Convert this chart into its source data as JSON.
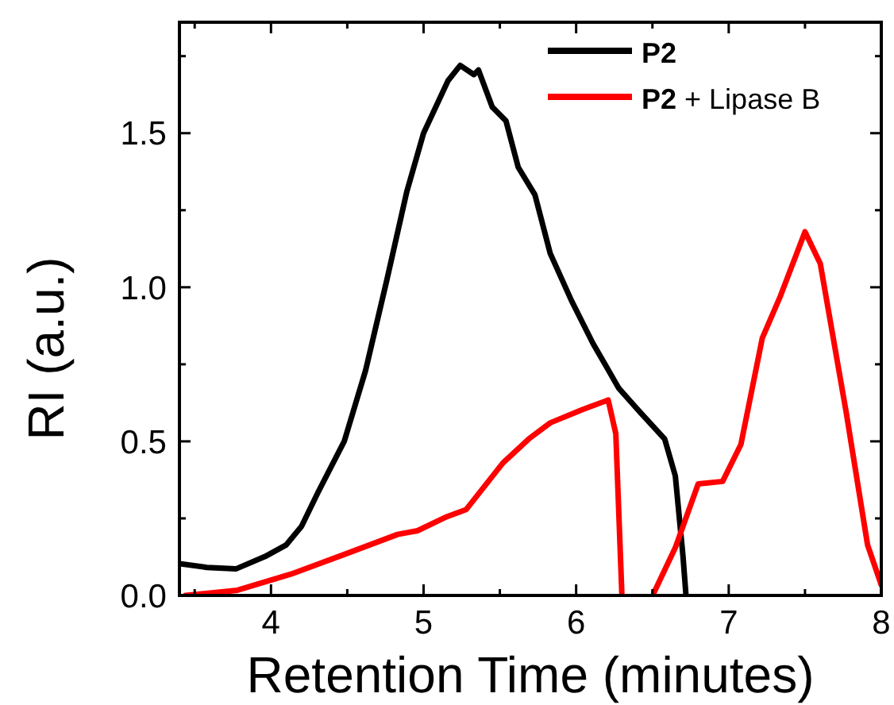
{
  "chart_data": {
    "type": "line",
    "xlabel": "Retention Time (minutes)",
    "ylabel": "RI (a.u.)",
    "xlim": [
      3.4,
      8
    ],
    "ylim": [
      0,
      1.86
    ],
    "xticks": [
      {
        "value": 3.5,
        "label": null
      },
      4,
      {
        "value": 4.5,
        "label": null
      },
      5,
      {
        "value": 5.5,
        "label": null
      },
      6,
      {
        "value": 6.5,
        "label": null
      },
      7,
      {
        "value": 7.5,
        "label": null
      },
      8
    ],
    "yticks": [
      {
        "value": 0,
        "label": "0.0"
      },
      {
        "value": 0.25,
        "label": null
      },
      0.5,
      {
        "value": 0.75,
        "label": null
      },
      {
        "value": 1,
        "label": "1.0"
      },
      {
        "value": 1.25,
        "label": null
      },
      1.5,
      {
        "value": 1.75,
        "label": null
      }
    ],
    "legend": "top right",
    "line_style": "solid",
    "marker": "none",
    "series": [
      {
        "name": "P2",
        "color": "#000000",
        "x": [
          3.4,
          3.58,
          3.77,
          3.96,
          4.1,
          4.2,
          4.31,
          4.48,
          4.62,
          4.76,
          4.89,
          5.0,
          5.16,
          5.24,
          5.33,
          5.36,
          5.45,
          5.54,
          5.62,
          5.73,
          5.83,
          5.97,
          6.11,
          6.28,
          6.42,
          6.58,
          6.65,
          6.7,
          6.72
        ],
        "values": [
          0.103,
          0.091,
          0.086,
          0.126,
          0.164,
          0.224,
          0.336,
          0.5,
          0.73,
          1.025,
          1.31,
          1.5,
          1.67,
          1.72,
          1.69,
          1.705,
          1.585,
          1.54,
          1.39,
          1.3,
          1.11,
          0.956,
          0.818,
          0.672,
          0.594,
          0.508,
          0.388,
          0.129,
          0
        ]
      },
      {
        "name": "P2 + Lipase B",
        "color": "#ff0000",
        "x": [
          3.44,
          3.78,
          4.13,
          4.48,
          4.83,
          4.96,
          5.14,
          5.28,
          5.52,
          5.69,
          5.83,
          6.04,
          6.21,
          6.26,
          6.3,
          6.4,
          6.51,
          6.65,
          6.8,
          6.96,
          7.08,
          7.22,
          7.34,
          7.5,
          7.6,
          7.77,
          7.91,
          8.0
        ],
        "values": [
          0,
          0.017,
          0.069,
          0.133,
          0.198,
          0.21,
          0.253,
          0.279,
          0.43,
          0.508,
          0.56,
          0.603,
          0.634,
          0.525,
          0,
          null,
          0.009,
          0.155,
          0.362,
          0.37,
          0.49,
          0.835,
          0.973,
          1.18,
          1.077,
          0.594,
          0.164,
          0.034
        ]
      }
    ]
  }
}
